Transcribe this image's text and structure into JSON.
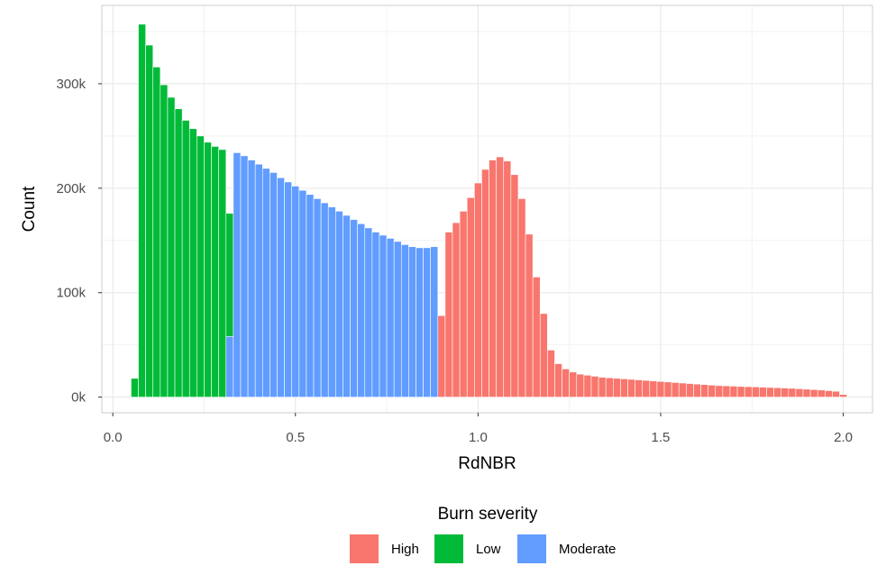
{
  "chart_data": {
    "type": "bar",
    "subtype": "histogram",
    "xlabel": "RdNBR",
    "ylabel": "Count",
    "xlim": [
      -0.03,
      2.08
    ],
    "ylim": [
      -15000,
      375000
    ],
    "x_ticks": [
      0.0,
      0.5,
      1.0,
      1.5,
      2.0
    ],
    "x_tick_labels": [
      "0.0",
      "0.5",
      "1.0",
      "1.5",
      "2.0"
    ],
    "y_ticks": [
      0,
      100000,
      200000,
      300000
    ],
    "y_tick_labels": [
      "0k",
      "100k",
      "200k",
      "300k"
    ],
    "bin_width": 0.02,
    "grid": true,
    "legend_position": "bottom",
    "legend": {
      "title": "Burn severity",
      "items": [
        {
          "name": "High",
          "color": "#F8766D"
        },
        {
          "name": "Low",
          "color": "#00BA38"
        },
        {
          "name": "Moderate",
          "color": "#619CFF"
        }
      ]
    },
    "series": [
      {
        "name": "Low",
        "color": "#00BA38",
        "x": [
          0.06,
          0.08,
          0.1,
          0.12,
          0.14,
          0.16,
          0.18,
          0.2,
          0.22,
          0.24,
          0.26,
          0.28,
          0.3,
          0.32
        ],
        "values": [
          18000,
          357000,
          337000,
          316000,
          299000,
          287000,
          276000,
          265000,
          257000,
          250000,
          244000,
          240000,
          237000,
          176000
        ]
      },
      {
        "name": "Moderate",
        "color": "#619CFF",
        "x": [
          0.32,
          0.34,
          0.36,
          0.38,
          0.4,
          0.42,
          0.44,
          0.46,
          0.48,
          0.5,
          0.52,
          0.54,
          0.56,
          0.58,
          0.6,
          0.62,
          0.64,
          0.66,
          0.68,
          0.7,
          0.72,
          0.74,
          0.76,
          0.78,
          0.8,
          0.82,
          0.84,
          0.86,
          0.88,
          0.9
        ],
        "values": [
          58000,
          234000,
          231000,
          227000,
          223000,
          219000,
          215000,
          210000,
          206000,
          202000,
          198000,
          194000,
          190000,
          186000,
          182000,
          178000,
          174000,
          170000,
          166000,
          162000,
          158000,
          155000,
          152000,
          149000,
          146000,
          144000,
          143000,
          143000,
          144000,
          75000
        ]
      },
      {
        "name": "High",
        "color": "#F8766D",
        "x": [
          0.9,
          0.92,
          0.94,
          0.96,
          0.98,
          1.0,
          1.02,
          1.04,
          1.06,
          1.08,
          1.1,
          1.12,
          1.14,
          1.16,
          1.18,
          1.2,
          1.22,
          1.24,
          1.26,
          1.28,
          1.3,
          1.32,
          1.34,
          1.36,
          1.38,
          1.4,
          1.42,
          1.44,
          1.46,
          1.48,
          1.5,
          1.52,
          1.54,
          1.56,
          1.58,
          1.6,
          1.62,
          1.64,
          1.66,
          1.68,
          1.7,
          1.72,
          1.74,
          1.76,
          1.78,
          1.8,
          1.82,
          1.84,
          1.86,
          1.88,
          1.9,
          1.92,
          1.94,
          1.96,
          1.98,
          2.0
        ],
        "values": [
          78000,
          158000,
          167000,
          178000,
          191000,
          205000,
          218000,
          227000,
          230000,
          226000,
          213000,
          190000,
          156000,
          115000,
          80000,
          45000,
          32000,
          27000,
          24000,
          22000,
          21000,
          20000,
          19000,
          18500,
          18000,
          17500,
          17000,
          16500,
          16000,
          15500,
          15000,
          14500,
          14000,
          13500,
          13000,
          12500,
          12000,
          11500,
          11000,
          10800,
          10500,
          10200,
          10000,
          9800,
          9500,
          9200,
          9000,
          8700,
          8400,
          8000,
          7600,
          7200,
          6800,
          6200,
          5600,
          2500
        ]
      }
    ]
  }
}
